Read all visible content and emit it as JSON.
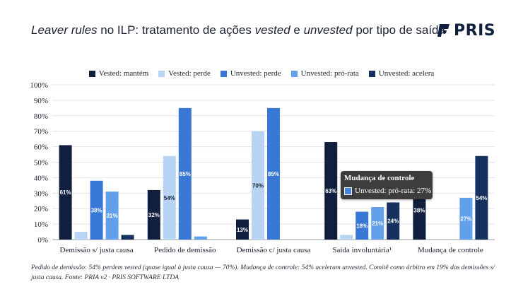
{
  "title": {
    "prefix_italic": "Leaver rules",
    "part1": " no ILP: tratamento de ações ",
    "vested": "vested",
    "part2": " e ",
    "unvested": "unvested",
    "part3": " por tipo de saída"
  },
  "logo": {
    "text": "PRIS"
  },
  "chart_data": {
    "type": "bar",
    "categories": [
      "Demissão s/ justa causa",
      "Pedido de demissão",
      "Demissão c/ justa causa",
      "Saída involuntária¹",
      "Mudança de controle"
    ],
    "series": [
      {
        "name": "Vested: mantém",
        "color": "#0f1f3d",
        "values": [
          61,
          32,
          13,
          63,
          38
        ]
      },
      {
        "name": "Vested: perde",
        "color": "#b8d4f5",
        "values": [
          5,
          54,
          70,
          3,
          0
        ]
      },
      {
        "name": "Unvested: perde",
        "color": "#3a78d6",
        "values": [
          38,
          85,
          85,
          18,
          0
        ]
      },
      {
        "name": "Unvested: pró-rata",
        "color": "#63a0ec",
        "values": [
          31,
          2,
          0,
          21,
          27
        ]
      },
      {
        "name": "Unvested: acelera",
        "color": "#16315e",
        "values": [
          3,
          0,
          0,
          24,
          54
        ]
      }
    ],
    "data_labels": [
      {
        "category": 0,
        "series": 0,
        "text": "61%"
      },
      {
        "category": 0,
        "series": 2,
        "text": "38%"
      },
      {
        "category": 0,
        "series": 3,
        "text": "31%"
      },
      {
        "category": 1,
        "series": 0,
        "text": "32%"
      },
      {
        "category": 1,
        "series": 1,
        "text": "54%"
      },
      {
        "category": 1,
        "series": 2,
        "text": "85%"
      },
      {
        "category": 2,
        "series": 0,
        "text": "13%"
      },
      {
        "category": 2,
        "series": 1,
        "text": "70%"
      },
      {
        "category": 2,
        "series": 2,
        "text": "85%"
      },
      {
        "category": 3,
        "series": 0,
        "text": "63%"
      },
      {
        "category": 3,
        "series": 2,
        "text": "18%"
      },
      {
        "category": 3,
        "series": 3,
        "text": "21%"
      },
      {
        "category": 3,
        "series": 4,
        "text": "24%"
      },
      {
        "category": 4,
        "series": 0,
        "text": "38%"
      },
      {
        "category": 4,
        "series": 3,
        "text": "27%"
      },
      {
        "category": 4,
        "series": 4,
        "text": "54%"
      }
    ],
    "ylim": [
      0,
      100
    ],
    "yticks": [
      "0%",
      "10%",
      "20%",
      "30%",
      "40%",
      "50%",
      "60%",
      "70%",
      "80%",
      "90%",
      "100%"
    ],
    "grid": true,
    "legend_position": "top"
  },
  "tooltip": {
    "title": "Mudança de controle",
    "row": "Unvested: pró-rata: 27%",
    "color": "#4a86e0"
  },
  "footnote": "Pedido de demissão: 54% perdem vested (quase igual à justa causa — 70%). Mudança de controle: 54% aceleram unvested. Comitê como árbitro em 19% das demissões s/ justa causa. Fonte: PRIA v2 · PRIS SOFTWARE LTDA"
}
